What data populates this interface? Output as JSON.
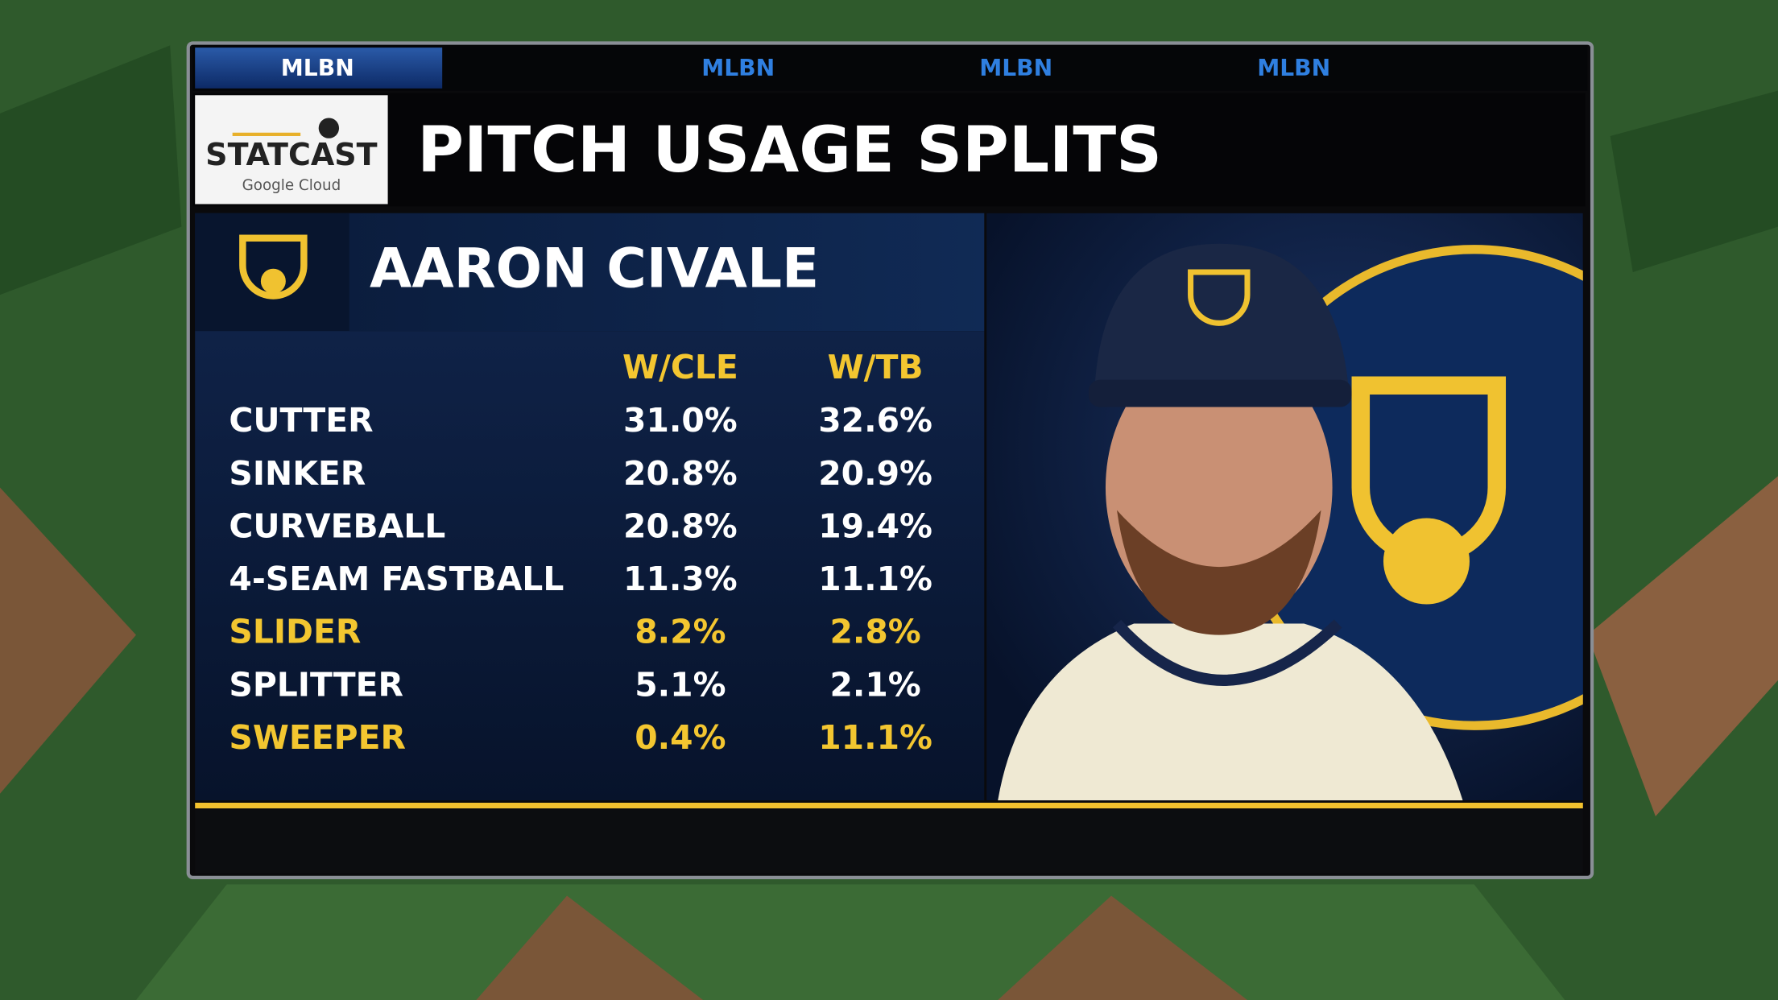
{
  "ticker": [
    "MLBN",
    "MLBN",
    "MLBN",
    "MLBN"
  ],
  "header": {
    "logo": {
      "brand": "STATCAST",
      "sponsor": "Google Cloud"
    },
    "title": "PITCH USAGE SPLITS"
  },
  "player": {
    "name": "AARON CIVALE"
  },
  "table": {
    "columns": [
      "W/CLE",
      "W/TB"
    ],
    "rows": [
      {
        "label": "CUTTER",
        "cells": [
          "31.0%",
          "32.6%"
        ],
        "highlight": false
      },
      {
        "label": "SINKER",
        "cells": [
          "20.8%",
          "20.9%"
        ],
        "highlight": false
      },
      {
        "label": "CURVEBALL",
        "cells": [
          "20.8%",
          "19.4%"
        ],
        "highlight": false
      },
      {
        "label": "4-SEAM FASTBALL",
        "cells": [
          "11.3%",
          "11.1%"
        ],
        "highlight": false
      },
      {
        "label": "SLIDER",
        "cells": [
          "8.2%",
          "2.8%"
        ],
        "highlight": true
      },
      {
        "label": "SPLITTER",
        "cells": [
          "5.1%",
          "2.1%"
        ],
        "highlight": false
      },
      {
        "label": "SWEEPER",
        "cells": [
          "0.4%",
          "11.1%"
        ],
        "highlight": true
      }
    ]
  }
}
